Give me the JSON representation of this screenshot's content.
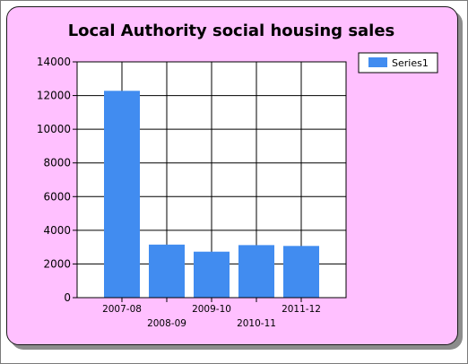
{
  "chart_data": {
    "type": "bar",
    "title": "Local Authority social housing sales",
    "categories": [
      "2007-08",
      "2008-09",
      "2009-10",
      "2010-11",
      "2011-12"
    ],
    "series": [
      {
        "name": "Series1",
        "values": [
          12280,
          3150,
          2730,
          3120,
          3070
        ],
        "color": "#418cf0"
      }
    ],
    "ylim": [
      0,
      14000
    ],
    "yticks": [
      0,
      2000,
      4000,
      6000,
      8000,
      10000,
      12000,
      14000
    ],
    "grid": true,
    "legend": "top-right",
    "background_color": "#ffc0ff"
  }
}
